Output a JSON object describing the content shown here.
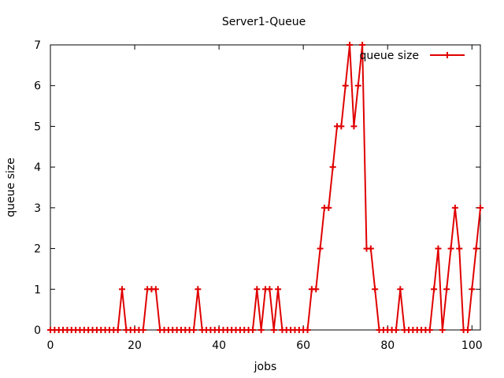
{
  "chart_data": {
    "type": "line",
    "title": "Server1-Queue",
    "xlabel": "jobs",
    "ylabel": "queue size",
    "xlim": [
      0,
      102
    ],
    "ylim": [
      0,
      7
    ],
    "xticks": [
      0,
      20,
      40,
      60,
      80,
      100
    ],
    "yticks": [
      0,
      1,
      2,
      3,
      4,
      5,
      6,
      7
    ],
    "grid": false,
    "legend_position": "top-right",
    "series": [
      {
        "name": "queue size",
        "color": "#e00000",
        "marker": "plus",
        "x": [
          0,
          1,
          2,
          3,
          4,
          5,
          6,
          7,
          8,
          9,
          10,
          11,
          12,
          13,
          14,
          15,
          16,
          17,
          18,
          19,
          20,
          21,
          22,
          23,
          24,
          25,
          26,
          27,
          28,
          29,
          30,
          31,
          32,
          33,
          34,
          35,
          36,
          37,
          38,
          39,
          40,
          41,
          42,
          43,
          44,
          45,
          46,
          47,
          48,
          49,
          50,
          51,
          52,
          53,
          54,
          55,
          56,
          57,
          58,
          59,
          60,
          61,
          62,
          63,
          64,
          65,
          66,
          67,
          68,
          69,
          70,
          71,
          72,
          73,
          74,
          75,
          76,
          77,
          78,
          79,
          80,
          81,
          82,
          83,
          84,
          85,
          86,
          87,
          88,
          89,
          90,
          91,
          92,
          93,
          94,
          95,
          96,
          97,
          98,
          99,
          100,
          101,
          102
        ],
        "y": [
          0,
          0,
          0,
          0,
          0,
          0,
          0,
          0,
          0,
          0,
          0,
          0,
          0,
          0,
          0,
          0,
          0,
          1,
          0,
          0,
          0,
          0,
          0,
          1,
          1,
          1,
          0,
          0,
          0,
          0,
          0,
          0,
          0,
          0,
          0,
          1,
          0,
          0,
          0,
          0,
          0,
          0,
          0,
          0,
          0,
          0,
          0,
          0,
          0,
          1,
          0,
          1,
          1,
          0,
          1,
          0,
          0,
          0,
          0,
          0,
          0,
          0,
          1,
          1,
          2,
          3,
          3,
          4,
          5,
          5,
          6,
          7,
          5,
          6,
          7,
          2,
          2,
          1,
          0,
          0,
          0,
          0,
          0,
          1,
          0,
          0,
          0,
          0,
          0,
          0,
          0,
          1,
          2,
          0,
          1,
          2,
          3,
          2,
          0,
          0,
          1,
          2,
          3
        ]
      }
    ]
  }
}
